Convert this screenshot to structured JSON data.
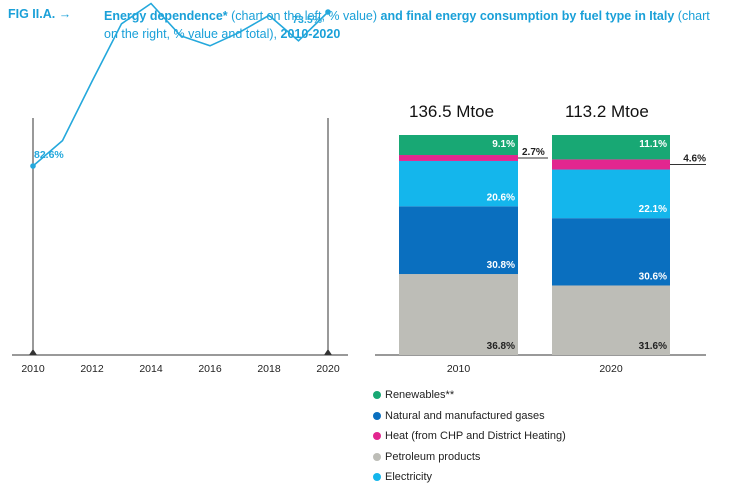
{
  "header": {
    "fig_code": "FIG II.A. →",
    "title_bold_1": "Energy dependence*",
    "title_normal_1": " (chart on the left, % value)",
    "title_bold_2": " and final energy consumption by fuel type in Italy",
    "title_normal_2": " (chart on the right, % value and total),",
    "title_bold_3": " 2010-2020"
  },
  "colors": {
    "renewables": "#18a874",
    "gases": "#0a6fbf",
    "heat": "#e2268f",
    "petroleum": "#bdbdb7",
    "electricity": "#14b6ec",
    "line": "#24a8dc",
    "axis": "#333333"
  },
  "chart_data": [
    {
      "type": "line",
      "x": [
        2010,
        2011,
        2012,
        2013,
        2014,
        2015,
        2016,
        2017,
        2018,
        2019,
        2020
      ],
      "series": [
        {
          "values": [
            82.6,
            81.1,
            77.6,
            74.2,
            73.0,
            74.9,
            75.5,
            74.7,
            73.7,
            75.2,
            73.5
          ]
        }
      ],
      "xticks": [
        "2010",
        "2012",
        "2014",
        "2016",
        "2018",
        "2020"
      ],
      "annotations": [
        {
          "x": 2010,
          "label": "82.6%"
        },
        {
          "x": 2020,
          "label": "73.5%"
        }
      ]
    },
    {
      "type": "bar",
      "stacked": true,
      "categories": [
        "2010",
        "2020"
      ],
      "totals": [
        "136.5 Mtoe",
        "113.2 Mtoe"
      ],
      "series": [
        {
          "name": "Petroleum products",
          "color_key": "petroleum",
          "values": [
            36.8,
            31.6
          ],
          "labels": [
            "36.8%",
            "31.6%"
          ]
        },
        {
          "name": "Natural and manufactured gases",
          "color_key": "gases",
          "values": [
            30.8,
            30.6
          ],
          "labels": [
            "30.8%",
            "30.6%"
          ]
        },
        {
          "name": "Electricity",
          "color_key": "electricity",
          "values": [
            20.6,
            22.1
          ],
          "labels": [
            "20.6%",
            "22.1%"
          ]
        },
        {
          "name": "Heat (from CHP and District Heating)",
          "color_key": "heat",
          "values": [
            2.7,
            4.6
          ],
          "labels": [
            "2.7%",
            "4.6%"
          ]
        },
        {
          "name": "Renewables**",
          "color_key": "renewables",
          "values": [
            9.1,
            11.1
          ],
          "labels": [
            "9.1%",
            "11.1%"
          ]
        }
      ]
    }
  ],
  "legend": [
    {
      "label": "Renewables**",
      "color_key": "renewables"
    },
    {
      "label": "Natural and manufactured gases",
      "color_key": "gases"
    },
    {
      "label": "Heat (from CHP and District Heating)",
      "color_key": "heat"
    },
    {
      "label": "Petroleum products",
      "color_key": "petroleum"
    },
    {
      "label": "Electricity",
      "color_key": "electricity"
    }
  ]
}
